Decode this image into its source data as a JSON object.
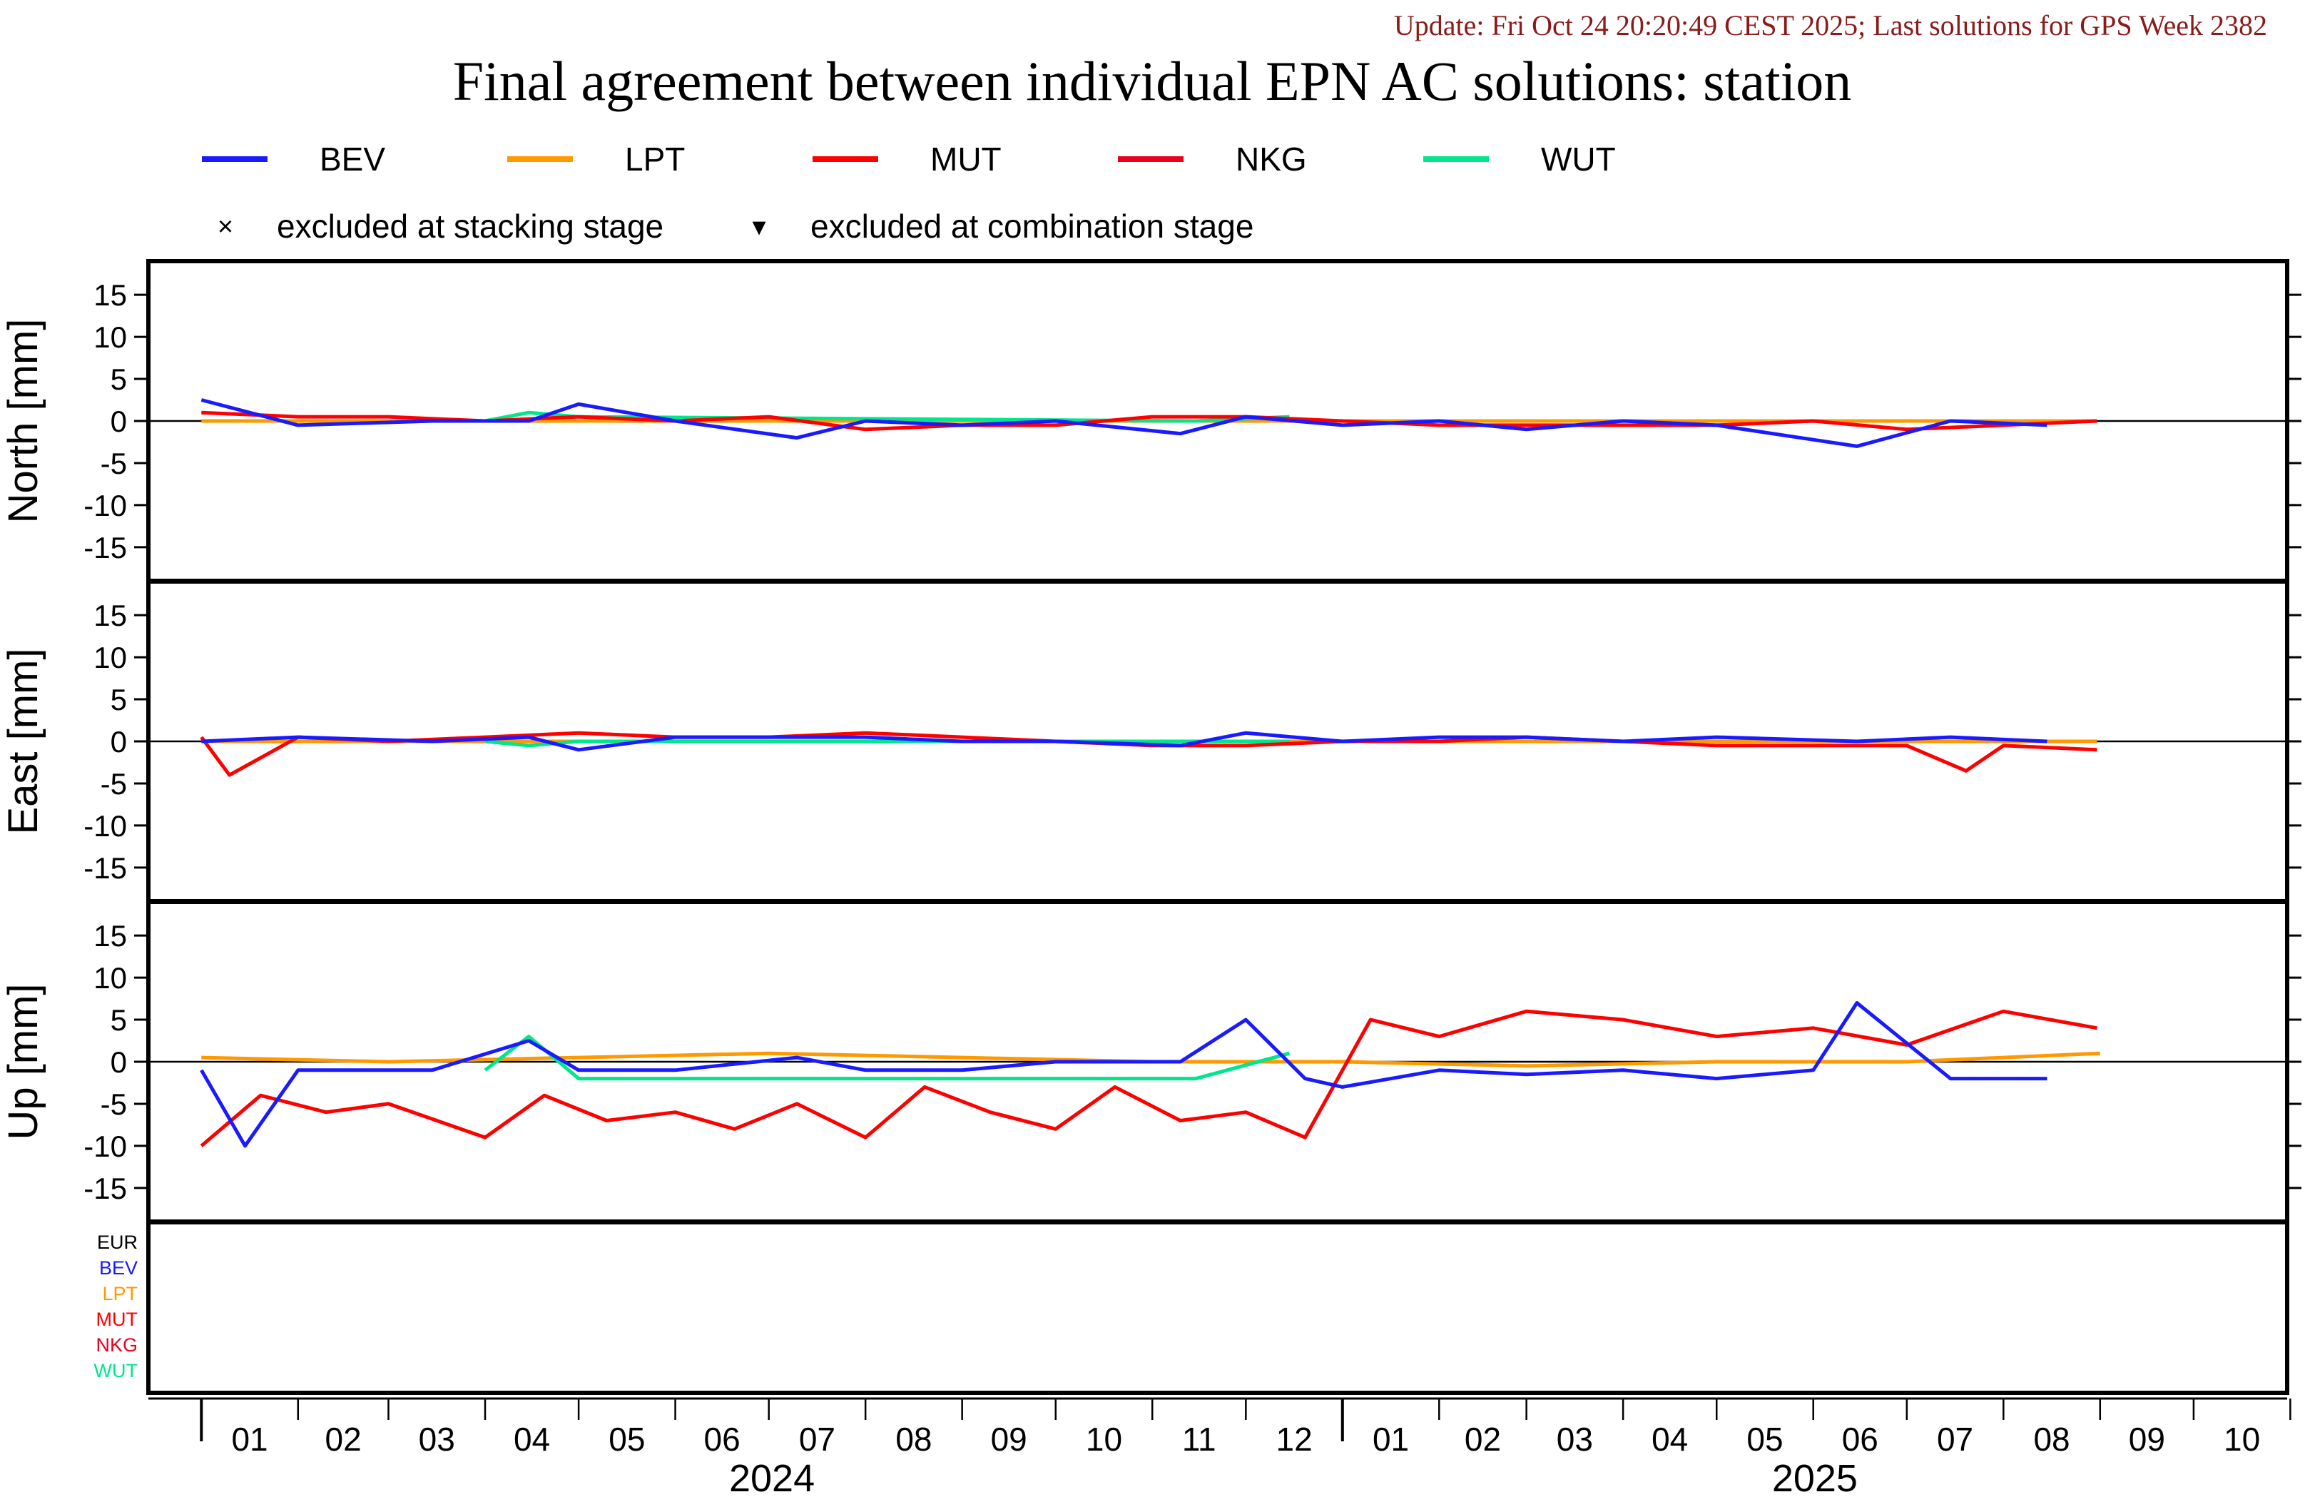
{
  "header": {
    "update_text": "Update: Fri Oct 24 20:20:49 CEST 2025; Last solutions for GPS Week 2382",
    "title": "Final agreement between individual EPN AC solutions: station"
  },
  "colors": {
    "BEV": "#1a1aff",
    "LPT": "#ff9900",
    "MUT": "#ff0000",
    "NKG": "#e8001c",
    "WUT": "#00e68a",
    "EUR": "#000000",
    "update_text": "#8b1a1a"
  },
  "legend": {
    "series": [
      {
        "key": "BEV",
        "label": "BEV"
      },
      {
        "key": "LPT",
        "label": "LPT"
      },
      {
        "key": "MUT",
        "label": "MUT"
      },
      {
        "key": "NKG",
        "label": "NKG"
      },
      {
        "key": "WUT",
        "label": "WUT"
      }
    ],
    "markers": [
      {
        "symbol": "×",
        "label": "excluded at stacking stage"
      },
      {
        "symbol": "▾",
        "label": "excluded at combination stage"
      }
    ]
  },
  "ac_list": [
    {
      "key": "EUR",
      "label": "EUR"
    },
    {
      "key": "BEV",
      "label": "BEV"
    },
    {
      "key": "LPT",
      "label": "LPT"
    },
    {
      "key": "MUT",
      "label": "MUT"
    },
    {
      "key": "NKG",
      "label": "NKG"
    },
    {
      "key": "WUT",
      "label": "WUT"
    }
  ],
  "chart_data": {
    "type": "line",
    "y_ticks": [
      15,
      10,
      5,
      0,
      -5,
      -10,
      -15
    ],
    "ylim": [
      -19,
      19
    ],
    "x_month_labels": [
      "01",
      "02",
      "03",
      "04",
      "05",
      "06",
      "07",
      "08",
      "09",
      "10",
      "11",
      "12",
      "01",
      "02",
      "03",
      "04",
      "05",
      "06",
      "07",
      "08",
      "09",
      "10"
    ],
    "x_year_labels": [
      "2024",
      "2025"
    ],
    "xlim": [
      "2023-12-15",
      "2025-10-31"
    ],
    "panels": [
      {
        "name": "north",
        "ylabel": "North [mm]",
        "series": [
          {
            "name": "BEV",
            "x": [
              "2024-01-01",
              "2024-02-01",
              "2024-03-15",
              "2024-04-15",
              "2024-05-01",
              "2024-06-01",
              "2024-07-10",
              "2024-08-01",
              "2024-09-01",
              "2024-10-01",
              "2024-11-10",
              "2024-12-01",
              "2025-01-01",
              "2025-02-01",
              "2025-03-01",
              "2025-04-01",
              "2025-05-01",
              "2025-06-15",
              "2025-07-15",
              "2025-08-15"
            ],
            "y": [
              2.5,
              -0.5,
              0.0,
              0.0,
              2.0,
              0.0,
              -2.0,
              0.0,
              -0.5,
              0.0,
              -1.5,
              0.5,
              -0.5,
              0.0,
              -1.0,
              0.0,
              -0.5,
              -3.0,
              0.0,
              -0.5
            ]
          },
          {
            "name": "LPT",
            "x": [
              "2024-01-01",
              "2024-04-01",
              "2024-07-01",
              "2024-10-01",
              "2025-01-01",
              "2025-04-01",
              "2025-07-01",
              "2025-08-31"
            ],
            "y": [
              0.0,
              0.0,
              0.0,
              0.0,
              0.0,
              0.0,
              0.0,
              0.0
            ]
          },
          {
            "name": "MUT",
            "x": [
              "2024-01-01",
              "2024-02-01",
              "2024-03-01",
              "2024-04-01",
              "2024-05-01",
              "2024-06-01",
              "2024-07-01",
              "2024-08-01",
              "2024-09-01",
              "2024-10-01",
              "2024-11-01",
              "2024-12-01",
              "2025-01-01",
              "2025-02-01",
              "2025-03-01",
              "2025-04-01",
              "2025-05-01",
              "2025-06-01",
              "2025-07-01",
              "2025-08-01",
              "2025-08-31"
            ],
            "y": [
              1.0,
              0.5,
              0.5,
              0.0,
              0.5,
              0.0,
              0.5,
              -1.0,
              -0.5,
              -0.5,
              0.5,
              0.5,
              0.0,
              -0.5,
              -0.5,
              -0.5,
              -0.5,
              0.0,
              -1.0,
              -0.5,
              0.0
            ]
          },
          {
            "name": "NKG",
            "x": [],
            "y": []
          },
          {
            "name": "WUT",
            "x": [
              "2024-04-01",
              "2024-04-15",
              "2024-05-01",
              "2024-11-15",
              "2024-12-15"
            ],
            "y": [
              0.0,
              1.0,
              0.5,
              0.0,
              0.5
            ]
          }
        ]
      },
      {
        "name": "east",
        "ylabel": "East [mm]",
        "series": [
          {
            "name": "BEV",
            "x": [
              "2024-01-01",
              "2024-02-01",
              "2024-03-15",
              "2024-04-15",
              "2024-05-01",
              "2024-06-01",
              "2024-07-10",
              "2024-08-01",
              "2024-09-01",
              "2024-10-01",
              "2024-11-10",
              "2024-12-01",
              "2025-01-01",
              "2025-02-01",
              "2025-03-01",
              "2025-04-01",
              "2025-05-01",
              "2025-06-15",
              "2025-07-15",
              "2025-08-15"
            ],
            "y": [
              0.0,
              0.5,
              0.0,
              0.5,
              -1.0,
              0.5,
              0.5,
              0.5,
              0.0,
              0.0,
              -0.5,
              1.0,
              0.0,
              0.5,
              0.5,
              0.0,
              0.5,
              0.0,
              0.5,
              0.0
            ]
          },
          {
            "name": "LPT",
            "x": [
              "2024-01-01",
              "2024-04-01",
              "2024-07-01",
              "2024-10-01",
              "2025-01-01",
              "2025-04-01",
              "2025-07-01",
              "2025-08-31"
            ],
            "y": [
              0.0,
              0.0,
              0.0,
              0.0,
              0.0,
              0.0,
              0.0,
              0.0
            ]
          },
          {
            "name": "MUT",
            "x": [
              "2024-01-01",
              "2024-01-10",
              "2024-02-01",
              "2024-03-01",
              "2024-04-01",
              "2024-05-01",
              "2024-06-01",
              "2024-07-01",
              "2024-08-01",
              "2024-09-01",
              "2024-10-01",
              "2024-11-01",
              "2024-12-01",
              "2025-01-01",
              "2025-02-01",
              "2025-03-01",
              "2025-04-01",
              "2025-05-01",
              "2025-06-01",
              "2025-07-01",
              "2025-07-20",
              "2025-08-01",
              "2025-08-31"
            ],
            "y": [
              0.5,
              -4.0,
              0.5,
              0.0,
              0.5,
              1.0,
              0.5,
              0.5,
              1.0,
              0.5,
              0.0,
              -0.5,
              -0.5,
              0.0,
              0.0,
              0.5,
              0.0,
              -0.5,
              -0.5,
              -0.5,
              -3.5,
              -0.5,
              -1.0
            ]
          },
          {
            "name": "NKG",
            "x": [],
            "y": []
          },
          {
            "name": "WUT",
            "x": [
              "2024-04-01",
              "2024-04-15",
              "2024-05-01",
              "2024-11-15",
              "2024-12-15"
            ],
            "y": [
              0.0,
              -0.5,
              0.0,
              0.0,
              0.0
            ]
          }
        ]
      },
      {
        "name": "up",
        "ylabel": "Up [mm]",
        "series": [
          {
            "name": "BEV",
            "x": [
              "2024-01-01",
              "2024-01-15",
              "2024-02-01",
              "2024-03-15",
              "2024-04-15",
              "2024-05-01",
              "2024-06-01",
              "2024-07-10",
              "2024-08-01",
              "2024-09-01",
              "2024-10-01",
              "2024-11-10",
              "2024-12-01",
              "2024-12-20",
              "2025-01-01",
              "2025-02-01",
              "2025-03-01",
              "2025-04-01",
              "2025-05-01",
              "2025-06-01",
              "2025-06-15",
              "2025-07-15",
              "2025-08-15"
            ],
            "y": [
              -1.0,
              -10.0,
              -1.0,
              -1.0,
              2.5,
              -1.0,
              -1.0,
              0.5,
              -1.0,
              -1.0,
              0.0,
              0.0,
              5.0,
              -2.0,
              -3.0,
              -1.0,
              -1.5,
              -1.0,
              -2.0,
              -1.0,
              7.0,
              -2.0,
              -2.0
            ]
          },
          {
            "name": "LPT",
            "x": [
              "2024-01-01",
              "2024-03-01",
              "2024-05-01",
              "2024-07-01",
              "2024-09-01",
              "2024-11-01",
              "2025-01-01",
              "2025-03-01",
              "2025-05-01",
              "2025-07-01",
              "2025-09-01"
            ],
            "y": [
              0.5,
              0.0,
              0.5,
              1.0,
              0.5,
              0.0,
              0.0,
              -0.5,
              0.0,
              0.0,
              1.0
            ]
          },
          {
            "name": "MUT",
            "x": [
              "2024-01-01",
              "2024-01-20",
              "2024-02-10",
              "2024-03-01",
              "2024-04-01",
              "2024-04-20",
              "2024-05-10",
              "2024-06-01",
              "2024-06-20",
              "2024-07-10",
              "2024-08-01",
              "2024-08-20",
              "2024-09-10",
              "2024-10-01",
              "2024-10-20",
              "2024-11-10",
              "2024-12-01",
              "2024-12-20",
              "2025-01-10",
              "2025-02-01",
              "2025-03-01",
              "2025-04-01",
              "2025-05-01",
              "2025-06-01",
              "2025-07-01",
              "2025-08-01",
              "2025-08-31"
            ],
            "y": [
              -10.0,
              -4.0,
              -6.0,
              -5.0,
              -9.0,
              -4.0,
              -7.0,
              -6.0,
              -8.0,
              -5.0,
              -9.0,
              -3.0,
              -6.0,
              -8.0,
              -3.0,
              -7.0,
              -6.0,
              -9.0,
              5.0,
              3.0,
              6.0,
              5.0,
              3.0,
              4.0,
              2.0,
              6.0,
              4.0
            ]
          },
          {
            "name": "NKG",
            "x": [],
            "y": []
          },
          {
            "name": "WUT",
            "x": [
              "2024-04-01",
              "2024-04-15",
              "2024-05-01",
              "2024-11-15",
              "2024-12-15"
            ],
            "y": [
              -1.0,
              3.0,
              -2.0,
              -2.0,
              1.0
            ]
          }
        ]
      },
      {
        "name": "solutions",
        "ylabel": "",
        "series": []
      }
    ]
  }
}
